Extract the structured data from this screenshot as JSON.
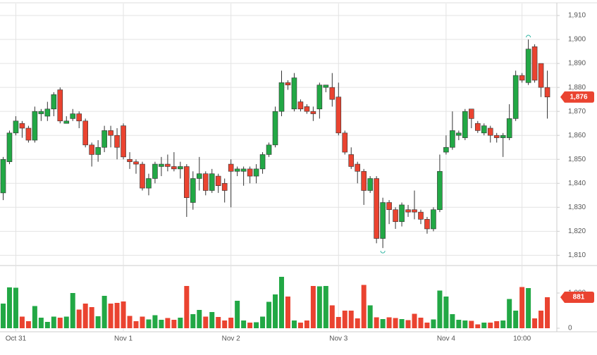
{
  "chart_data": {
    "type": "candlestick",
    "up_color": "#22a845",
    "down_color": "#ea4330",
    "grid": true,
    "xlim": [
      -0.5,
      87.5
    ],
    "xticks": [
      {
        "value": 2,
        "label": "Oct 31"
      },
      {
        "value": 19,
        "label": "Nov 1"
      },
      {
        "value": 36,
        "label": "Nov 2"
      },
      {
        "value": 53,
        "label": "Nov 3"
      },
      {
        "value": 70,
        "label": "Nov 4"
      },
      {
        "value": 82,
        "label": "10:00"
      }
    ],
    "ylim": [
      1806,
      1915
    ],
    "yticks": [
      {
        "value": 1810,
        "label": "1,810"
      },
      {
        "value": 1820,
        "label": "1,820"
      },
      {
        "value": 1830,
        "label": "1,830"
      },
      {
        "value": 1840,
        "label": "1,840"
      },
      {
        "value": 1850,
        "label": "1,850"
      },
      {
        "value": 1860,
        "label": "1,860"
      },
      {
        "value": 1870,
        "label": "1,870"
      },
      {
        "value": 1880,
        "label": "1,880"
      },
      {
        "value": 1890,
        "label": "1,890"
      },
      {
        "value": 1900,
        "label": "1,900"
      },
      {
        "value": 1910,
        "label": "1,910"
      }
    ],
    "open": [
      1836,
      1849,
      1861,
      1865,
      1863,
      1858,
      1869,
      1868,
      1871,
      1879,
      1865,
      1867,
      1869,
      1866,
      1856,
      1852,
      1855,
      1862,
      1860,
      1864,
      1850,
      1849,
      1848,
      1838,
      1842,
      1847,
      1848,
      1847,
      1846,
      1847,
      1832,
      1842,
      1844,
      1837,
      1843,
      1840,
      1848,
      1845,
      1845,
      1846,
      1843,
      1846,
      1852,
      1856,
      1870,
      1882,
      1871,
      1874,
      1872,
      1870,
      1871,
      1880,
      1880,
      1876,
      1861,
      1852,
      1848,
      1845,
      1837,
      1842,
      1817,
      1832,
      1829,
      1824,
      1829,
      1829,
      1828,
      1825,
      1821,
      1829,
      1853,
      1855,
      1860,
      1859,
      1871,
      1865,
      1861,
      1863,
      1860,
      1859,
      1859,
      1867,
      1885,
      1882,
      1897,
      1890,
      1880
    ],
    "high": [
      1851,
      1862,
      1868,
      1866,
      1864,
      1872,
      1871,
      1874,
      1878,
      1880,
      1868,
      1871,
      1870,
      1867,
      1857,
      1858,
      1864,
      1864,
      1863,
      1865,
      1853,
      1850,
      1849,
      1844,
      1849,
      1851,
      1852,
      1853,
      1849,
      1848,
      1845,
      1851,
      1845,
      1846,
      1844,
      1842,
      1850,
      1847,
      1847,
      1847,
      1848,
      1853,
      1857,
      1872,
      1887,
      1883,
      1886,
      1875,
      1873,
      1872,
      1882,
      1881,
      1886,
      1882,
      1862,
      1855,
      1849,
      1846,
      1843,
      1843,
      1834,
      1833,
      1830,
      1832,
      1831,
      1837,
      1829,
      1826,
      1830,
      1852,
      1860,
      1870,
      1862,
      1871,
      1871,
      1866,
      1865,
      1864,
      1861,
      1861,
      1873,
      1887,
      1886,
      1900,
      1898,
      1890,
      1887
    ],
    "low": [
      1833,
      1848,
      1860,
      1859,
      1857,
      1857,
      1866,
      1866,
      1868,
      1865,
      1865,
      1866,
      1863,
      1855,
      1847,
      1849,
      1853,
      1855,
      1850,
      1850,
      1846,
      1844,
      1837,
      1835,
      1840,
      1843,
      1845,
      1845,
      1842,
      1826,
      1829,
      1837,
      1835,
      1836,
      1836,
      1832,
      1830,
      1843,
      1839,
      1840,
      1840,
      1844,
      1851,
      1855,
      1868,
      1879,
      1870,
      1870,
      1869,
      1866,
      1867,
      1878,
      1872,
      1860,
      1852,
      1846,
      1840,
      1831,
      1836,
      1815,
      1813,
      1823,
      1821,
      1822,
      1826,
      1825,
      1823,
      1819,
      1820,
      1828,
      1852,
      1854,
      1858,
      1858,
      1863,
      1861,
      1860,
      1857,
      1857,
      1851,
      1858,
      1866,
      1882,
      1881,
      1882,
      1876,
      1867
    ],
    "close": [
      1850,
      1861,
      1866,
      1863,
      1858,
      1870,
      1870,
      1871,
      1877,
      1866,
      1866,
      1869,
      1866,
      1856,
      1852,
      1855,
      1862,
      1860,
      1855,
      1851,
      1849,
      1848,
      1838,
      1842,
      1848,
      1848,
      1847,
      1846,
      1847,
      1834,
      1842,
      1844,
      1837,
      1844,
      1839,
      1837,
      1845,
      1846,
      1846,
      1843,
      1846,
      1852,
      1856,
      1870,
      1882,
      1881,
      1884,
      1871,
      1870,
      1869,
      1881,
      1881,
      1875,
      1861,
      1853,
      1847,
      1845,
      1837,
      1842,
      1817,
      1832,
      1829,
      1824,
      1831,
      1828,
      1828,
      1825,
      1821,
      1829,
      1845,
      1855,
      1862,
      1861,
      1870,
      1867,
      1862,
      1864,
      1860,
      1859,
      1860,
      1867,
      1885,
      1883,
      1896,
      1883,
      1880,
      1876
    ],
    "last_price": {
      "value": 1876,
      "label": "1,876"
    },
    "volume": {
      "values": [
        700,
        1160,
        1150,
        330,
        200,
        630,
        300,
        180,
        330,
        300,
        330,
        1000,
        530,
        700,
        600,
        340,
        920,
        700,
        720,
        760,
        350,
        200,
        330,
        250,
        370,
        240,
        290,
        240,
        300,
        1200,
        400,
        520,
        330,
        460,
        320,
        220,
        300,
        780,
        220,
        160,
        170,
        330,
        750,
        960,
        1460,
        900,
        220,
        160,
        220,
        1200,
        1190,
        1200,
        650,
        320,
        500,
        500,
        280,
        1230,
        650,
        310,
        260,
        310,
        290,
        260,
        230,
        410,
        300,
        160,
        250,
        1070,
        900,
        400,
        240,
        220,
        210,
        110,
        160,
        160,
        200,
        220,
        830,
        500,
        1170,
        1140,
        280,
        500,
        881
      ],
      "ylim": [
        -80,
        1760
      ],
      "yticks": [
        0,
        {
          "value": 1000,
          "label": "1,000"
        }
      ],
      "last": {
        "value": 881,
        "label": "881"
      }
    }
  }
}
